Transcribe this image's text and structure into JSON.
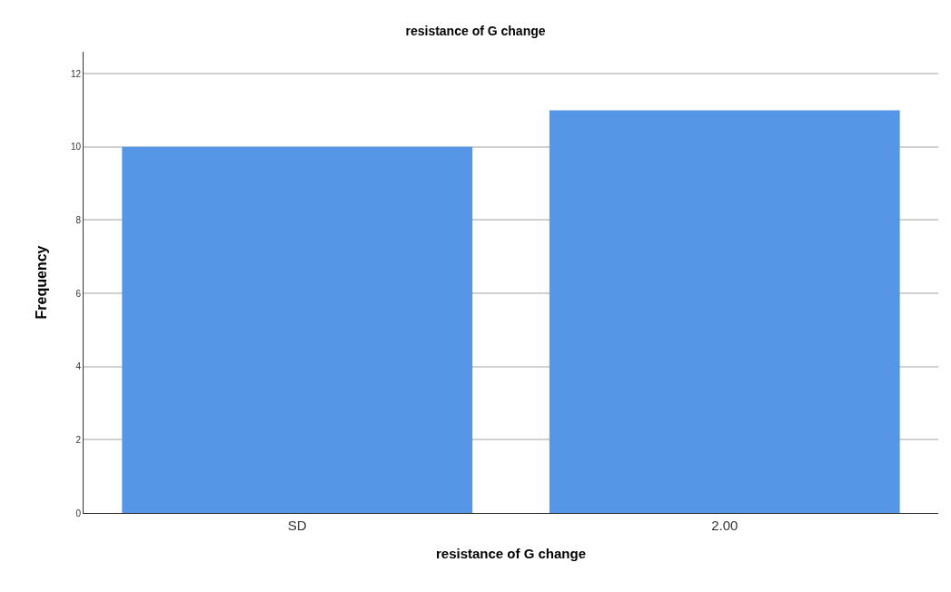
{
  "chart_data": {
    "type": "bar",
    "title": "resistance of G change",
    "xlabel": "resistance of G change",
    "ylabel": "Frequency",
    "categories": [
      "SD",
      "2.00"
    ],
    "values": [
      10,
      11
    ],
    "color": "#5596e6",
    "ylim": [
      0,
      12.6
    ],
    "yticks": [
      0,
      2,
      4,
      6,
      8,
      10,
      12
    ],
    "grid": "y"
  }
}
